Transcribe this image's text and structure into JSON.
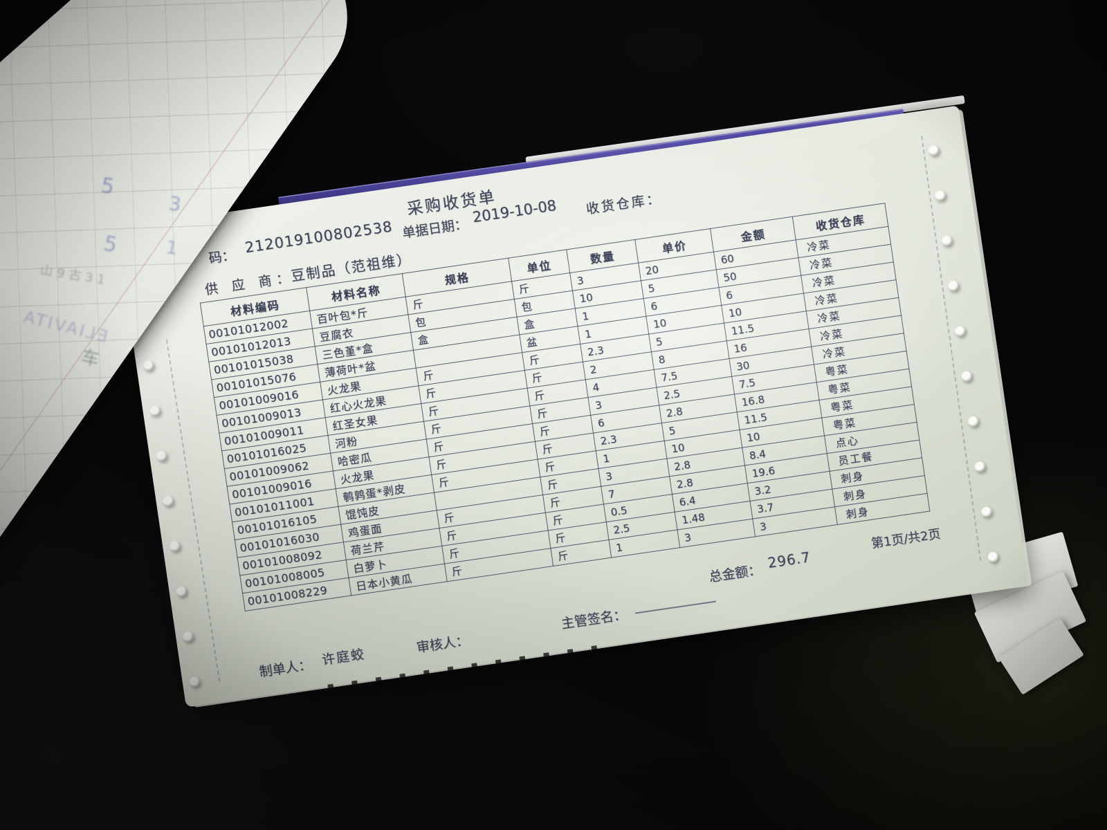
{
  "document": {
    "title": "采购收货单",
    "header": {
      "code_label": "码：",
      "code_value": "212019100802538",
      "date_label": "单据日期：",
      "date_value": "2019-10-08",
      "warehouse_label": "收货仓库：",
      "supplier_label": "供 应 商：",
      "supplier_value": "豆制品（范祖维）"
    },
    "table": {
      "columns": [
        "材料编码",
        "材料名称",
        "规格",
        "单位",
        "数量",
        "单价",
        "金额",
        "收货仓库"
      ],
      "rows": [
        {
          "code": "00101012002",
          "name": "百叶包*斤",
          "spec": "斤",
          "unit": "斤",
          "qty": "3",
          "price": "20",
          "amount": "60",
          "warehouse": "冷菜"
        },
        {
          "code": "00101012013",
          "name": "豆腐衣",
          "spec": "包",
          "unit": "包",
          "qty": "10",
          "price": "5",
          "amount": "50",
          "warehouse": "冷菜"
        },
        {
          "code": "00101015038",
          "name": "三色堇*盒",
          "spec": "盒",
          "unit": "盒",
          "qty": "1",
          "price": "6",
          "amount": "6",
          "warehouse": "冷菜"
        },
        {
          "code": "00101015076",
          "name": "薄荷叶*盆",
          "spec": "",
          "unit": "盆",
          "qty": "1",
          "price": "10",
          "amount": "10",
          "warehouse": "冷菜"
        },
        {
          "code": "00101009016",
          "name": "火龙果",
          "spec": "斤",
          "unit": "斤",
          "qty": "2.3",
          "price": "5",
          "amount": "11.5",
          "warehouse": "冷菜"
        },
        {
          "code": "00101009013",
          "name": "红心火龙果",
          "spec": "斤",
          "unit": "斤",
          "qty": "2",
          "price": "8",
          "amount": "16",
          "warehouse": "冷菜"
        },
        {
          "code": "00101009011",
          "name": "红圣女果",
          "spec": "斤",
          "unit": "斤",
          "qty": "4",
          "price": "7.5",
          "amount": "30",
          "warehouse": "冷菜"
        },
        {
          "code": "00101016025",
          "name": "河粉",
          "spec": "斤",
          "unit": "斤",
          "qty": "3",
          "price": "2.5",
          "amount": "7.5",
          "warehouse": "粤菜"
        },
        {
          "code": "00101009062",
          "name": "哈密瓜",
          "spec": "斤",
          "unit": "斤",
          "qty": "6",
          "price": "2.8",
          "amount": "16.8",
          "warehouse": "粤菜"
        },
        {
          "code": "00101009016",
          "name": "火龙果",
          "spec": "斤",
          "unit": "斤",
          "qty": "2.3",
          "price": "5",
          "amount": "11.5",
          "warehouse": "粤菜"
        },
        {
          "code": "00101011001",
          "name": "鹌鹑蛋*剥皮",
          "spec": "斤",
          "unit": "斤",
          "qty": "1",
          "price": "10",
          "amount": "10",
          "warehouse": "粤菜"
        },
        {
          "code": "00101016105",
          "name": "馄饨皮",
          "spec": "",
          "unit": "斤",
          "qty": "3",
          "price": "2.8",
          "amount": "8.4",
          "warehouse": "点心"
        },
        {
          "code": "00101016030",
          "name": "鸡蛋面",
          "spec": "斤",
          "unit": "斤",
          "qty": "7",
          "price": "2.8",
          "amount": "19.6",
          "warehouse": "员工餐"
        },
        {
          "code": "00101008092",
          "name": "荷兰芹",
          "spec": "斤",
          "unit": "斤",
          "qty": "0.5",
          "price": "6.4",
          "amount": "3.2",
          "warehouse": "刺身"
        },
        {
          "code": "00101008005",
          "name": "白萝卜",
          "spec": "斤",
          "unit": "斤",
          "qty": "2.5",
          "price": "1.48",
          "amount": "3.7",
          "warehouse": "刺身"
        },
        {
          "code": "00101008229",
          "name": "日本小黄瓜",
          "spec": "斤",
          "unit": "斤",
          "qty": "1",
          "price": "3",
          "amount": "3",
          "warehouse": "刺身"
        }
      ]
    },
    "footer": {
      "total_label": "总金额：",
      "total_value": "296.7",
      "page_info": "第1页/共2页",
      "supervisor_label": "主管签名：",
      "reviewer_label": "审核人：",
      "preparer_label": "制单人：",
      "preparer_name": "许庭蛟"
    },
    "bleed_marks": {
      "m1": "5",
      "m2": "3",
      "m3": "5",
      "m4": "1",
      "m5": "山9古31",
      "m6": "ELIAVITA",
      "m7": "车"
    }
  }
}
